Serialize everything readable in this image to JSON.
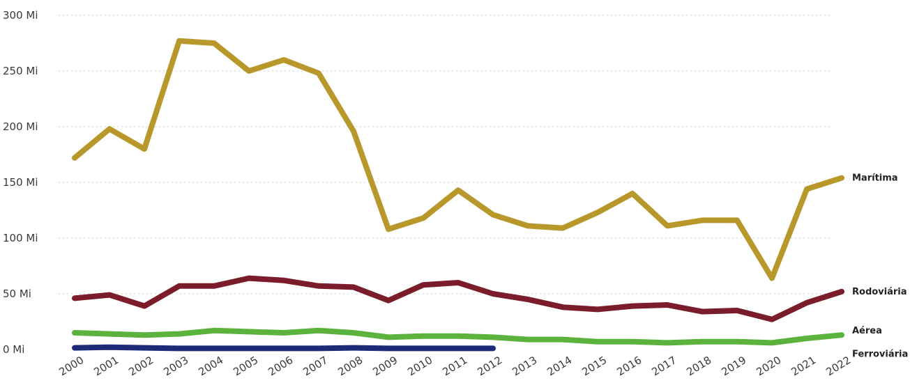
{
  "chart_data": {
    "type": "line",
    "x": [
      "2000",
      "2001",
      "2002",
      "2003",
      "2004",
      "2005",
      "2006",
      "2007",
      "2008",
      "2009",
      "2010",
      "2011",
      "2012",
      "2013",
      "2014",
      "2015",
      "2016",
      "2017",
      "2018",
      "2019",
      "2020",
      "2021",
      "2022"
    ],
    "y_ticks": [
      "0 Mi",
      "50 Mi",
      "100 Mi",
      "150 Mi",
      "200 Mi",
      "250 Mi",
      "300 Mi"
    ],
    "y_tick_values": [
      0,
      50,
      100,
      150,
      200,
      250,
      300
    ],
    "ylim": [
      0,
      300
    ],
    "grid": true,
    "legend": "end-of-line labels",
    "series": [
      {
        "name": "Marítima",
        "color": "#b8982a",
        "values": [
          172,
          198,
          180,
          277,
          275,
          250,
          260,
          248,
          196,
          108,
          118,
          143,
          121,
          111,
          109,
          123,
          140,
          111,
          116,
          116,
          64,
          144,
          154
        ]
      },
      {
        "name": "Rodoviária",
        "color": "#7b1c2b",
        "values": [
          46,
          49,
          39,
          57,
          57,
          64,
          62,
          57,
          56,
          44,
          58,
          60,
          50,
          45,
          38,
          36,
          39,
          40,
          34,
          35,
          27,
          42,
          52
        ]
      },
      {
        "name": "Aérea",
        "color": "#5bb33e",
        "values": [
          15,
          14,
          13,
          14,
          17,
          16,
          15,
          17,
          15,
          11,
          12,
          12,
          11,
          9,
          9,
          7,
          7,
          6,
          7,
          7,
          6,
          10,
          13
        ]
      },
      {
        "name": "Ferroviária",
        "color": "#1c2a78",
        "values": [
          1.5,
          2,
          1.5,
          1,
          1,
          1,
          1,
          1,
          1.5,
          1,
          1,
          1,
          1,
          null,
          null,
          null,
          null,
          null,
          null,
          null,
          null,
          null,
          null
        ]
      }
    ]
  }
}
